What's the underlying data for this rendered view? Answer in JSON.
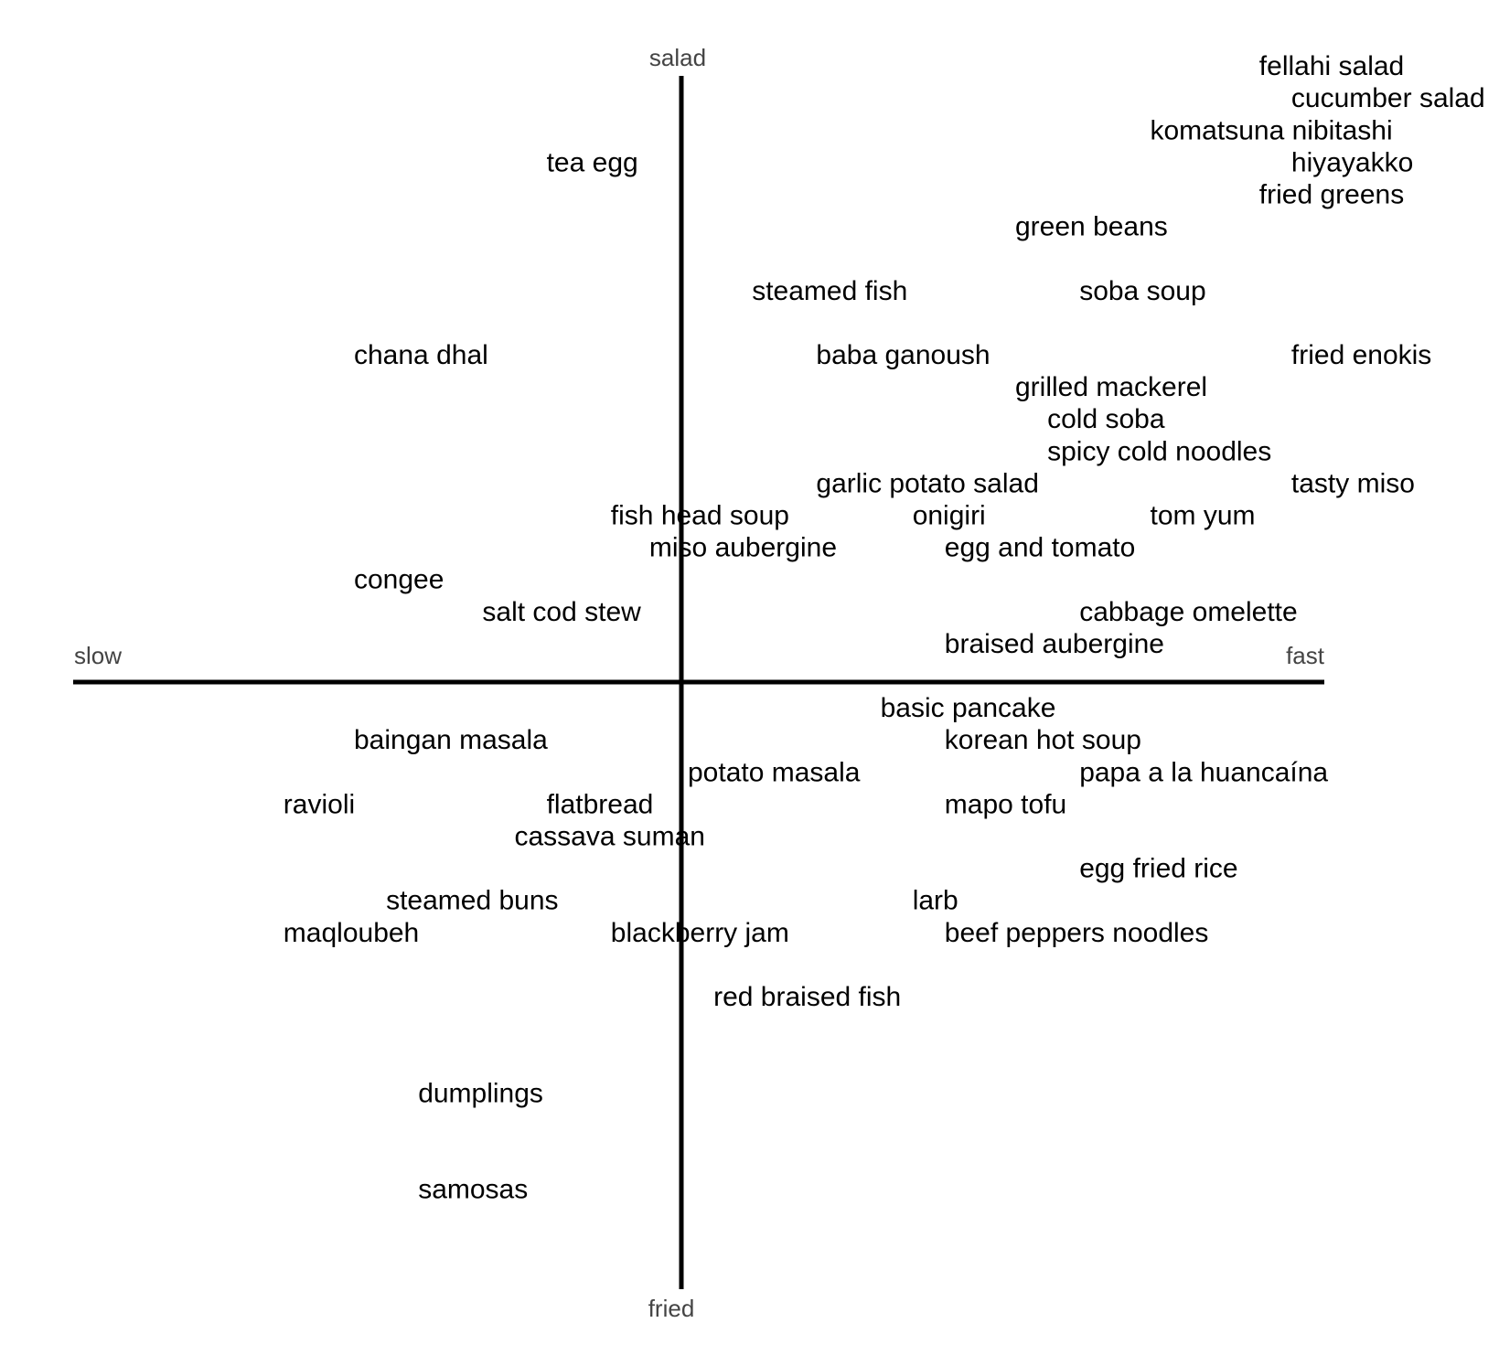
{
  "chart_data": {
    "type": "scatter",
    "title": "",
    "xlabel": "",
    "ylabel": "",
    "axis_labels": {
      "x_negative": "slow",
      "x_positive": "fast",
      "y_positive": "salad",
      "y_negative": "fried"
    },
    "xlim": [
      -10,
      10
    ],
    "ylim": [
      -10,
      10
    ],
    "grid": false,
    "points": [
      {
        "label": "fellahi salad",
        "x": 9.0,
        "y": 9.6
      },
      {
        "label": "cucumber salad",
        "x": 9.5,
        "y": 9.1
      },
      {
        "label": "komatsuna nibitashi",
        "x": 7.3,
        "y": 8.6
      },
      {
        "label": "hiyayakko",
        "x": 9.5,
        "y": 8.1
      },
      {
        "label": "fried greens",
        "x": 9.0,
        "y": 7.6
      },
      {
        "label": "green beans",
        "x": 5.2,
        "y": 7.1
      },
      {
        "label": "tea egg",
        "x": -2.1,
        "y": 8.1
      },
      {
        "label": "steamed fish",
        "x": 1.1,
        "y": 6.1
      },
      {
        "label": "soba soup",
        "x": 6.2,
        "y": 6.1
      },
      {
        "label": "chana dhal",
        "x": -5.1,
        "y": 5.1
      },
      {
        "label": "baba ganoush",
        "x": 2.1,
        "y": 5.1
      },
      {
        "label": "fried enokis",
        "x": 9.5,
        "y": 5.1
      },
      {
        "label": "grilled mackerel",
        "x": 5.2,
        "y": 4.6
      },
      {
        "label": "cold soba",
        "x": 5.7,
        "y": 4.1
      },
      {
        "label": "spicy cold noodles",
        "x": 5.7,
        "y": 3.6
      },
      {
        "label": "garlic potato salad",
        "x": 2.1,
        "y": 3.1
      },
      {
        "label": "tasty miso",
        "x": 9.5,
        "y": 3.1
      },
      {
        "label": "fish head soup",
        "x": -1.1,
        "y": 2.6
      },
      {
        "label": "onigiri",
        "x": 3.6,
        "y": 2.6
      },
      {
        "label": "tom yum",
        "x": 7.3,
        "y": 2.6
      },
      {
        "label": "miso aubergine",
        "x": -0.5,
        "y": 2.1
      },
      {
        "label": "egg and tomato",
        "x": 4.1,
        "y": 2.1
      },
      {
        "label": "congee",
        "x": -5.1,
        "y": 1.6
      },
      {
        "label": "salt cod stew",
        "x": -3.1,
        "y": 1.1
      },
      {
        "label": "cabbage omelette",
        "x": 6.2,
        "y": 1.1
      },
      {
        "label": "braised aubergine",
        "x": 4.1,
        "y": 0.6
      },
      {
        "label": "basic pancake",
        "x": 3.1,
        "y": -0.4
      },
      {
        "label": "baingan masala",
        "x": -5.1,
        "y": -0.9
      },
      {
        "label": "korean hot soup",
        "x": 4.1,
        "y": -0.9
      },
      {
        "label": "potato masala",
        "x": 0.1,
        "y": -1.4
      },
      {
        "label": "papa a la huancaína",
        "x": 6.2,
        "y": -1.4
      },
      {
        "label": "ravioli",
        "x": -6.2,
        "y": -1.9
      },
      {
        "label": "flatbread",
        "x": -2.1,
        "y": -1.9
      },
      {
        "label": "mapo tofu",
        "x": 4.1,
        "y": -1.9
      },
      {
        "label": "cassava suman",
        "x": -2.6,
        "y": -2.4
      },
      {
        "label": "egg fried rice",
        "x": 6.2,
        "y": -2.9
      },
      {
        "label": "steamed buns",
        "x": -4.6,
        "y": -3.4
      },
      {
        "label": "larb",
        "x": 3.6,
        "y": -3.4
      },
      {
        "label": "maqloubeh",
        "x": -6.2,
        "y": -3.9
      },
      {
        "label": "blackberry jam",
        "x": -1.1,
        "y": -3.9
      },
      {
        "label": "beef peppers noodles",
        "x": 4.1,
        "y": -3.9
      },
      {
        "label": "red braised fish",
        "x": 0.5,
        "y": -4.9
      },
      {
        "label": "dumplings",
        "x": -4.1,
        "y": -6.4
      },
      {
        "label": "samosas",
        "x": -4.1,
        "y": -7.9
      }
    ]
  }
}
